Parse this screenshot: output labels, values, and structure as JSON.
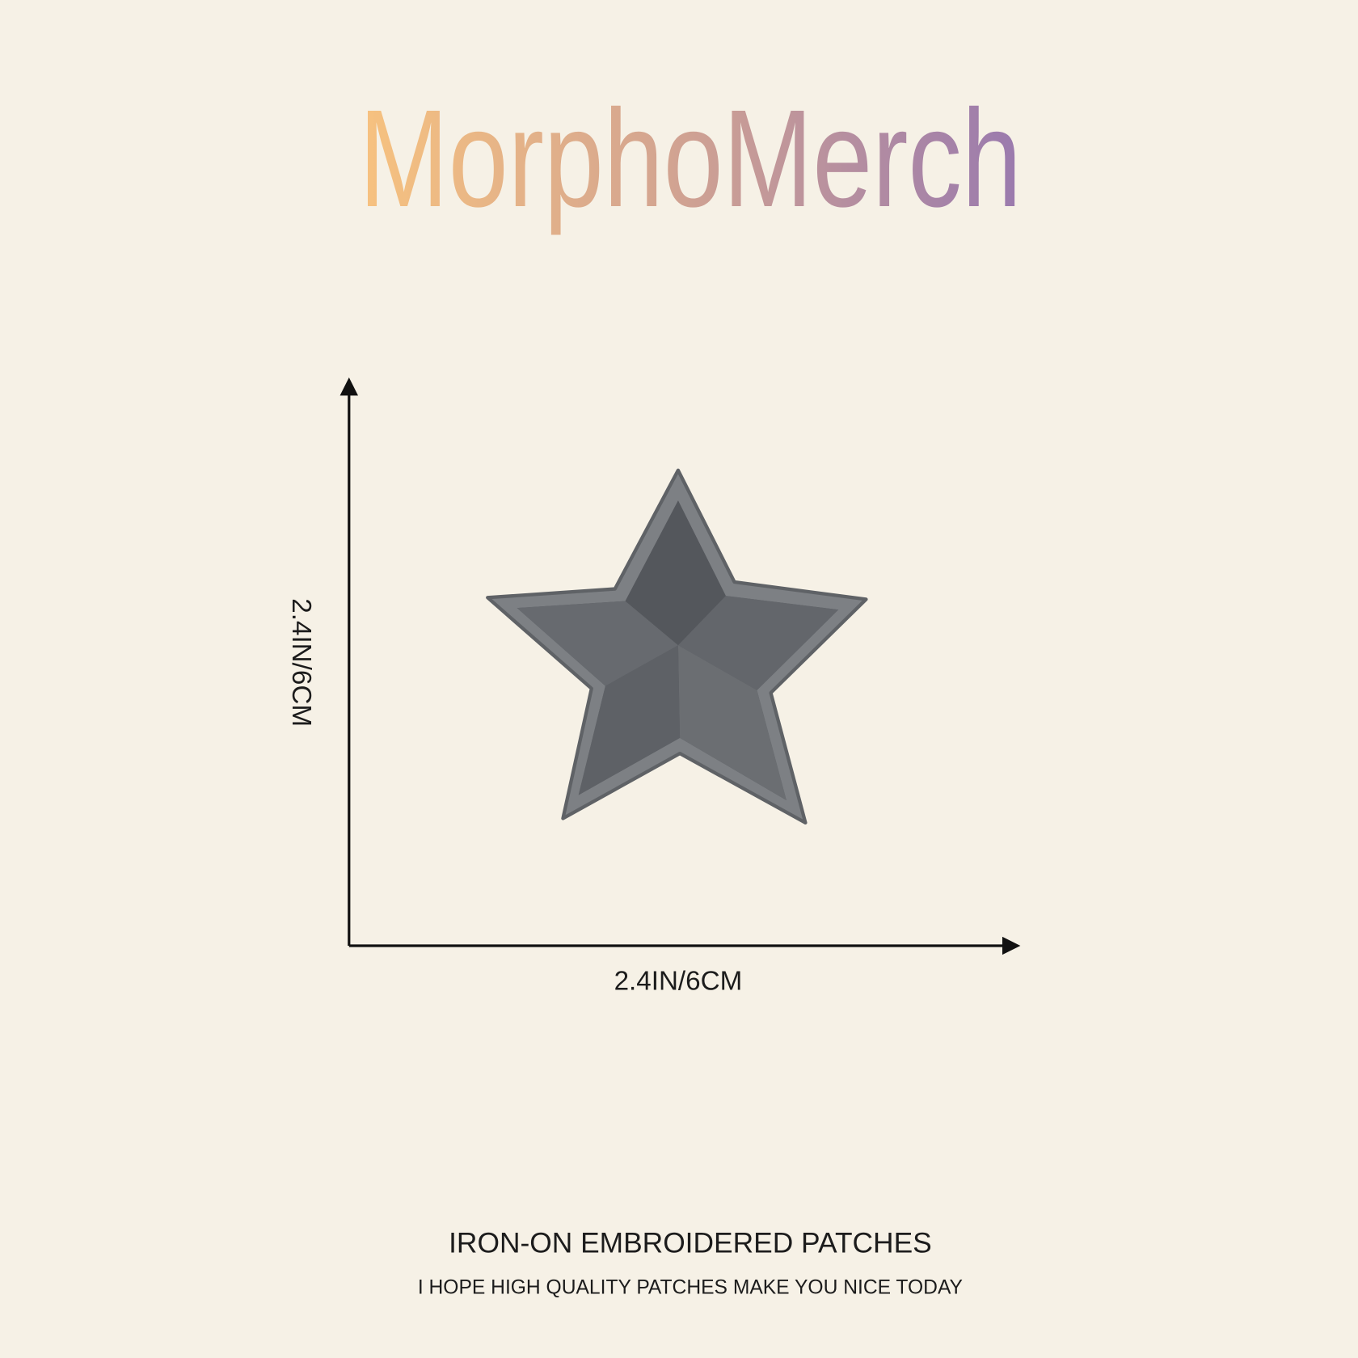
{
  "brand": "MorphoMerch",
  "dimensions": {
    "height_label": "2.4IN/6CM",
    "width_label": "2.4IN/6CM"
  },
  "footer": {
    "title": "IRON-ON EMBROIDERED PATCHES",
    "subtitle": "I HOPE HIGH QUALITY PATCHES MAKE YOU NICE TODAY"
  }
}
